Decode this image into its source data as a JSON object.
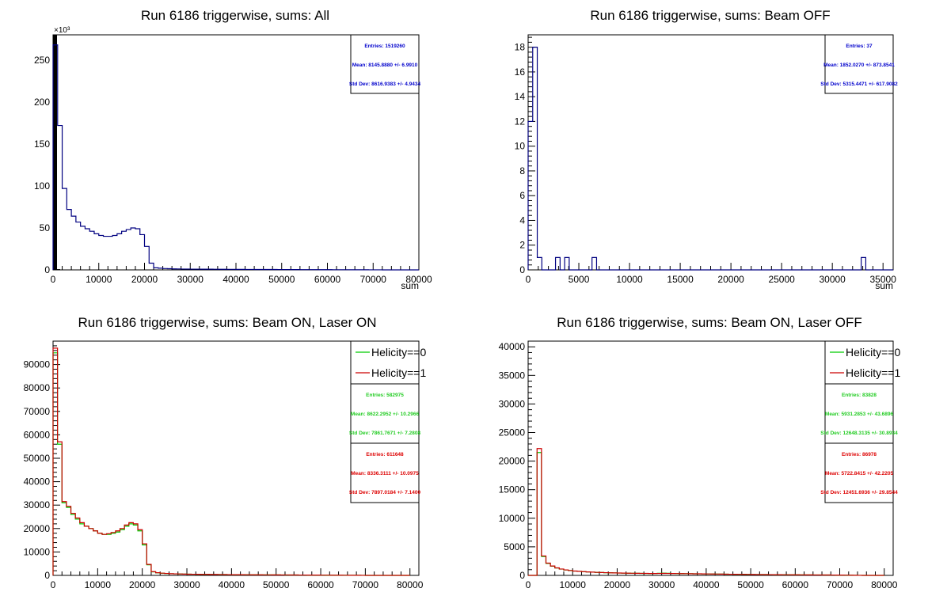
{
  "chart_data": [
    {
      "type": "histogram",
      "title": "Run 6186 triggerwise, sums: All",
      "xlabel": "sum",
      "ylabel": "",
      "xlim": [
        0,
        80000
      ],
      "ylim": [
        0,
        280000
      ],
      "x_ticks": [
        0,
        10000,
        20000,
        30000,
        40000,
        50000,
        60000,
        70000,
        80000
      ],
      "y_ticks": [
        0,
        50,
        100,
        150,
        200,
        250
      ],
      "y_multiplier_label": "×10³",
      "y_scale_display": 1000,
      "bin_width": 1000,
      "series": [
        {
          "name": "",
          "color": "#000080",
          "values": [
            268000,
            172000,
            97000,
            72000,
            64000,
            57000,
            52000,
            49000,
            46000,
            43000,
            41000,
            40000,
            40000,
            41000,
            43000,
            46000,
            48000,
            50000,
            49000,
            42000,
            28000,
            8000,
            2500,
            2000,
            1600,
            1400,
            1200,
            1100,
            1000,
            1000,
            900,
            900,
            850,
            800,
            800,
            750,
            700,
            700,
            650,
            650,
            600,
            600,
            550,
            550,
            500,
            500,
            500,
            450,
            450,
            400,
            400,
            400,
            350,
            350,
            300,
            300,
            300,
            280,
            260,
            240,
            220,
            200,
            200,
            180,
            160,
            150,
            140,
            120,
            100,
            80,
            60,
            40,
            20,
            10,
            5,
            0,
            0,
            0,
            0,
            0
          ]
        }
      ],
      "stats": [
        {
          "color": "#0000cc",
          "entries": "Entries: 1519260",
          "mean": "Mean: 8145.8880 +/- 6.9910",
          "std": "Std Dev: 8616.9383 +/- 4.9434"
        }
      ],
      "legend": []
    },
    {
      "type": "histogram",
      "title": "Run 6186 triggerwise, sums: Beam OFF",
      "xlabel": "sum",
      "ylabel": "",
      "xlim": [
        0,
        36000
      ],
      "ylim": [
        0,
        19
      ],
      "x_ticks": [
        0,
        5000,
        10000,
        15000,
        20000,
        25000,
        30000,
        35000
      ],
      "y_ticks": [
        0,
        2,
        4,
        6,
        8,
        10,
        12,
        14,
        16,
        18
      ],
      "y_multiplier_label": "",
      "y_scale_display": 1,
      "bin_width": 450,
      "series": [
        {
          "name": "",
          "color": "#000080",
          "values": [
            12,
            18,
            1,
            0,
            0,
            0,
            1,
            0,
            1,
            0,
            0,
            0,
            0,
            0,
            1,
            0,
            0,
            0,
            0,
            0,
            0,
            0,
            0,
            0,
            0,
            0,
            0,
            0,
            0,
            0,
            0,
            0,
            0,
            0,
            0,
            0,
            0,
            0,
            0,
            0,
            0,
            0,
            0,
            0,
            0,
            0,
            0,
            0,
            0,
            0,
            0,
            0,
            0,
            0,
            0,
            0,
            0,
            0,
            0,
            0,
            0,
            0,
            0,
            0,
            0,
            0,
            0,
            0,
            0,
            0,
            0,
            0,
            0,
            1,
            0,
            0,
            0,
            0,
            0,
            0
          ]
        }
      ],
      "stats": [
        {
          "color": "#0000cc",
          "entries": "Entries: 37",
          "mean": "Mean: 1852.0270 +/- 873.8541",
          "std": "Std Dev: 5315.4471 +/- 617.9082"
        }
      ],
      "legend": []
    },
    {
      "type": "histogram",
      "title": "Run 6186 triggerwise, sums: Beam ON, Laser ON",
      "xlabel": "",
      "ylabel": "",
      "xlim": [
        0,
        82000
      ],
      "ylim": [
        0,
        100000
      ],
      "x_ticks": [
        0,
        10000,
        20000,
        30000,
        40000,
        50000,
        60000,
        70000,
        80000
      ],
      "y_ticks": [
        0,
        10000,
        20000,
        30000,
        40000,
        50000,
        60000,
        70000,
        80000,
        90000
      ],
      "y_multiplier_label": "",
      "y_scale_display": 1,
      "bin_width": 1000,
      "series": [
        {
          "name": "Helicity==0",
          "color": "#00cc00",
          "values": [
            95000,
            56000,
            31000,
            29000,
            26000,
            24000,
            22000,
            21000,
            20000,
            19000,
            18000,
            17500,
            17500,
            18000,
            18500,
            19500,
            21000,
            22000,
            21500,
            19000,
            13000,
            4500,
            1500,
            1100,
            900,
            800,
            700,
            650,
            600,
            550,
            500,
            480,
            450,
            420,
            400,
            380,
            360,
            350,
            330,
            320,
            300,
            290,
            280,
            270,
            260,
            250,
            240,
            230,
            220,
            210,
            200,
            190,
            180,
            170,
            160,
            150,
            140,
            130,
            120,
            110,
            100,
            95,
            90,
            80,
            70,
            60,
            50,
            40,
            30,
            20,
            10,
            5,
            0,
            0,
            0,
            0,
            0,
            0,
            0,
            0
          ]
        },
        {
          "name": "Helicity==1",
          "color": "#cc0000",
          "values": [
            97000,
            57000,
            31500,
            29500,
            26500,
            24500,
            22500,
            21000,
            20000,
            19000,
            18000,
            17500,
            17800,
            18300,
            19000,
            20000,
            21500,
            22500,
            22000,
            19500,
            13500,
            4700,
            1600,
            1150,
            950,
            820,
            720,
            660,
            610,
            560,
            510,
            490,
            460,
            430,
            410,
            390,
            370,
            355,
            335,
            325,
            305,
            295,
            285,
            275,
            265,
            255,
            245,
            235,
            225,
            215,
            205,
            195,
            185,
            175,
            165,
            155,
            145,
            135,
            125,
            115,
            105,
            98,
            92,
            82,
            72,
            62,
            52,
            42,
            32,
            22,
            12,
            6,
            0,
            0,
            0,
            0,
            0,
            0,
            0,
            0
          ]
        }
      ],
      "stats": [
        {
          "color": "#22cc22",
          "entries": "Entries: 582975",
          "mean": "Mean: 8622.2952 +/- 10.2966",
          "std": "Std Dev: 7861.7671 +/- 7.2808"
        },
        {
          "color": "#dd0000",
          "entries": "Entries: 611648",
          "mean": "Mean: 8336.3111 +/- 10.0975",
          "std": "Std Dev: 7897.0184 +/- 7.1400"
        }
      ],
      "legend": [
        "Helicity==0",
        "Helicity==1"
      ]
    },
    {
      "type": "histogram",
      "title": "Run 6186 triggerwise, sums: Beam ON, Laser OFF",
      "xlabel": "",
      "ylabel": "",
      "xlim": [
        0,
        82000
      ],
      "ylim": [
        0,
        41000
      ],
      "x_ticks": [
        0,
        10000,
        20000,
        30000,
        40000,
        50000,
        60000,
        70000,
        80000
      ],
      "y_ticks": [
        0,
        5000,
        10000,
        15000,
        20000,
        25000,
        30000,
        35000,
        40000
      ],
      "y_multiplier_label": "",
      "y_scale_display": 1,
      "bin_width": 1000,
      "series": [
        {
          "name": "Helicity==0",
          "color": "#00cc00",
          "values": [
            0,
            0,
            21500,
            3300,
            2100,
            1600,
            1300,
            1100,
            950,
            850,
            750,
            700,
            650,
            600,
            560,
            520,
            500,
            470,
            450,
            430,
            410,
            400,
            380,
            370,
            360,
            350,
            340,
            330,
            340,
            360,
            380,
            360,
            340,
            320,
            310,
            300,
            290,
            280,
            270,
            260,
            250,
            240,
            230,
            220,
            210,
            200,
            190,
            180,
            170,
            160,
            150,
            145,
            140,
            135,
            130,
            125,
            120,
            115,
            110,
            105,
            100,
            95,
            90,
            85,
            80,
            75,
            70,
            65,
            60,
            55,
            50,
            40,
            30,
            20,
            10,
            0,
            0,
            0,
            0,
            0
          ]
        },
        {
          "name": "Helicity==1",
          "color": "#cc0000",
          "values": [
            0,
            0,
            22200,
            3400,
            2150,
            1650,
            1320,
            1120,
            960,
            860,
            760,
            710,
            660,
            610,
            570,
            530,
            505,
            475,
            455,
            435,
            415,
            402,
            385,
            372,
            362,
            352,
            342,
            332,
            330,
            335,
            345,
            340,
            332,
            322,
            312,
            302,
            292,
            282,
            272,
            262,
            252,
            242,
            232,
            222,
            212,
            202,
            192,
            182,
            172,
            162,
            152,
            146,
            141,
            136,
            131,
            126,
            121,
            116,
            111,
            106,
            101,
            96,
            91,
            86,
            81,
            76,
            71,
            66,
            61,
            56,
            51,
            41,
            31,
            21,
            11,
            0,
            0,
            0,
            0,
            0
          ]
        }
      ],
      "stats": [
        {
          "color": "#22cc22",
          "entries": "Entries: 83828",
          "mean": "Mean: 5931.2853 +/- 43.6896",
          "std": "Std Dev: 12648.3135 +/- 30.8934"
        },
        {
          "color": "#dd0000",
          "entries": "Entries: 86978",
          "mean": "Mean: 5722.8415 +/- 42.2205",
          "std": "Std Dev: 12451.6936 +/- 29.8544"
        }
      ],
      "legend": [
        "Helicity==0",
        "Helicity==1"
      ]
    }
  ]
}
